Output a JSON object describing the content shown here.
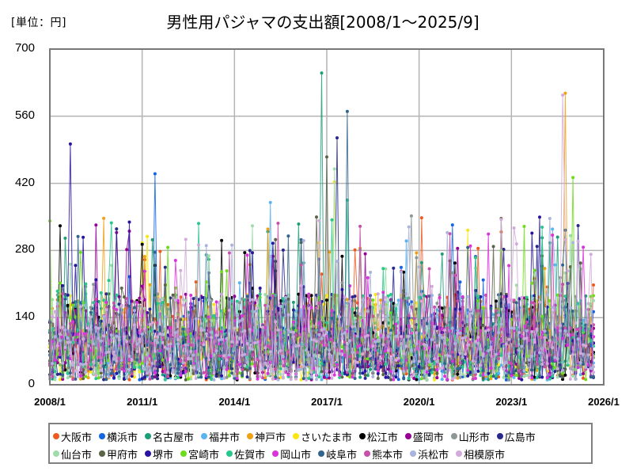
{
  "header": {
    "unit_label": "[単位：円]",
    "title": "男性用パジャマの支出額[2008/1～2025/9]"
  },
  "chart_data": {
    "type": "line",
    "title": "男性用パジャマの支出額[2008/1～2025/9]",
    "unit": "円",
    "xlabel": "",
    "ylabel": "[単位：円]",
    "ylim": [
      0,
      700
    ],
    "yticks": [
      0,
      140,
      280,
      420,
      560,
      700
    ],
    "xlim": [
      "2008/1",
      "2026/1"
    ],
    "xticks": [
      "2008/1",
      "2011/1",
      "2014/1",
      "2017/1",
      "2020/1",
      "2023/1",
      "2026/1"
    ],
    "grid": true,
    "legend_position": "bottom",
    "period": {
      "start": "2008/1",
      "end": "2025/9",
      "months": 213
    },
    "series": [
      {
        "name": "大阪市",
        "color": "#F05A1E",
        "peak": {
          "x": "2025/9",
          "y": 208
        }
      },
      {
        "name": "横浜市",
        "color": "#1464E6",
        "peak": {
          "x": "2011/6",
          "y": 440
        }
      },
      {
        "name": "名古屋市",
        "color": "#1E9E78",
        "peak": {
          "x": "2016/11",
          "y": 650
        }
      },
      {
        "name": "福井市",
        "color": "#5AB4F0",
        "peak": {
          "x": "2015/3",
          "y": 380
        }
      },
      {
        "name": "神戸市",
        "color": "#F0A014",
        "peak": {
          "x": "2024/10",
          "y": 608
        }
      },
      {
        "name": "さいたま市",
        "color": "#FAE614",
        "peak": {
          "x": "2017/4",
          "y": 423
        }
      },
      {
        "name": "松江市",
        "color": "#000000",
        "peak": {
          "x": "2017/7",
          "y": 268
        }
      },
      {
        "name": "盛岡市",
        "color": "#960096",
        "peak": {
          "x": "2015/4",
          "y": 268
        }
      },
      {
        "name": "山形市",
        "color": "#8C9696",
        "peak": {
          "x": "2019/10",
          "y": 352
        }
      },
      {
        "name": "広島市",
        "color": "#28288C",
        "peak": {
          "x": "2017/5",
          "y": 515
        }
      },
      {
        "name": "仙台市",
        "color": "#A0DCAA",
        "peak": {
          "x": "2017/4",
          "y": 450
        }
      },
      {
        "name": "甲府市",
        "color": "#5A6446",
        "peak": {
          "x": "2017/1",
          "y": 475
        }
      },
      {
        "name": "堺市",
        "color": "#2814A0",
        "peak": {
          "x": "2008/9",
          "y": 502
        }
      },
      {
        "name": "宮崎市",
        "color": "#6EDC1E",
        "peak": {
          "x": "2025/1",
          "y": 432
        }
      },
      {
        "name": "佐賀市",
        "color": "#28C88C",
        "peak": {
          "x": "2017/9",
          "y": 385
        }
      },
      {
        "name": "岡山市",
        "color": "#DC32DC",
        "peak": {
          "x": "2024/5",
          "y": 312
        }
      },
      {
        "name": "岐阜市",
        "color": "#32648C",
        "peak": {
          "x": "2017/9",
          "y": 570
        }
      },
      {
        "name": "熊本市",
        "color": "#C850AA",
        "peak": {
          "x": "2016/3",
          "y": 250
        }
      },
      {
        "name": "浜松市",
        "color": "#AAB4DC",
        "peak": {
          "x": "2013/2",
          "y": 290
        }
      },
      {
        "name": "相模原市",
        "color": "#D2AADC",
        "peak": {
          "x": "2024/9",
          "y": 604
        }
      }
    ],
    "typical_range": [
      10,
      250
    ]
  }
}
